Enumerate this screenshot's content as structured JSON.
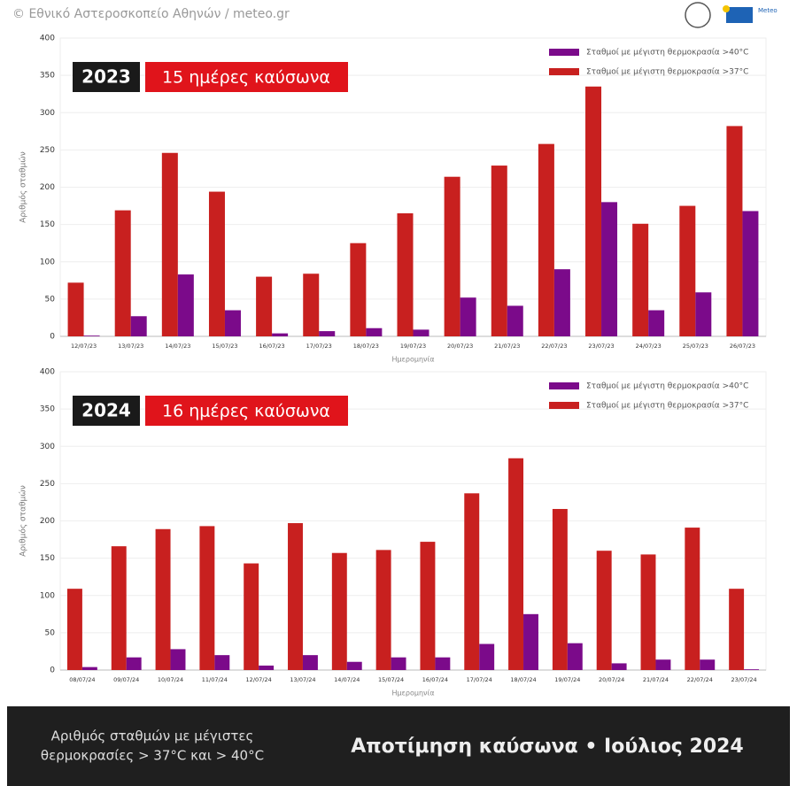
{
  "header": {
    "credit": "© Εθνικό Αστεροσκοπείο Αθηνών / meteo.gr",
    "logo": "Meteo"
  },
  "chart_data": [
    {
      "type": "bar",
      "title": "2023",
      "subtitle": "15 ημέρες καύσωνα",
      "xlabel": "Ημερομηνία",
      "ylabel": "Αριθμός σταθμών",
      "categories": [
        "12/07/23",
        "13/07/23",
        "14/07/23",
        "15/07/23",
        "16/07/23",
        "17/07/23",
        "18/07/23",
        "19/07/23",
        "20/07/23",
        "21/07/23",
        "22/07/23",
        "23/07/23",
        "24/07/23",
        "25/07/23",
        "26/07/23"
      ],
      "series": [
        {
          "name": "Σταθμοί με μέγιστη θερμοκρασία >40°C",
          "color": "#7b0a8a",
          "values": [
            1,
            27,
            83,
            35,
            4,
            7,
            11,
            9,
            52,
            41,
            90,
            180,
            35,
            59,
            168
          ]
        },
        {
          "name": "Σταθμοί με μέγιστη θερμοκρασία >37°C",
          "color": "#c8201f",
          "values": [
            72,
            169,
            246,
            194,
            80,
            84,
            125,
            165,
            214,
            229,
            258,
            335,
            151,
            175,
            282
          ]
        }
      ],
      "ylim": [
        0,
        400
      ],
      "yticks": [
        0,
        50,
        100,
        150,
        200,
        250,
        300,
        350,
        400
      ],
      "grid": true,
      "legend": "top-right"
    },
    {
      "type": "bar",
      "title": "2024",
      "subtitle": "16 ημέρες καύσωνα",
      "xlabel": "Ημερομηνία",
      "ylabel": "Αριθμός σταθμών",
      "categories": [
        "08/07/24",
        "09/07/24",
        "10/07/24",
        "11/07/24",
        "12/07/24",
        "13/07/24",
        "14/07/24",
        "15/07/24",
        "16/07/24",
        "17/07/24",
        "18/07/24",
        "19/07/24",
        "20/07/24",
        "21/07/24",
        "22/07/24",
        "23/07/24"
      ],
      "series": [
        {
          "name": "Σταθμοί με μέγιστη θερμοκρασία >40°C",
          "color": "#7b0a8a",
          "values": [
            4,
            17,
            28,
            20,
            6,
            20,
            11,
            17,
            17,
            35,
            75,
            36,
            9,
            14,
            14,
            1
          ]
        },
        {
          "name": "Σταθμοί με μέγιστη θερμοκρασία >37°C",
          "color": "#c8201f",
          "values": [
            109,
            166,
            189,
            193,
            143,
            197,
            157,
            161,
            172,
            237,
            284,
            216,
            160,
            155,
            191,
            109
          ]
        }
      ],
      "ylim": [
        0,
        400
      ],
      "yticks": [
        0,
        50,
        100,
        150,
        200,
        250,
        300,
        350,
        400
      ],
      "grid": true,
      "legend": "top-right"
    }
  ],
  "footer": {
    "caption": [
      "Αριθμός σταθμών με μέγιστες",
      "θερμοκρασίες > 37°C και > 40°C"
    ],
    "title": "Αποτίμηση καύσωνα • Ιούλιος 2024"
  }
}
